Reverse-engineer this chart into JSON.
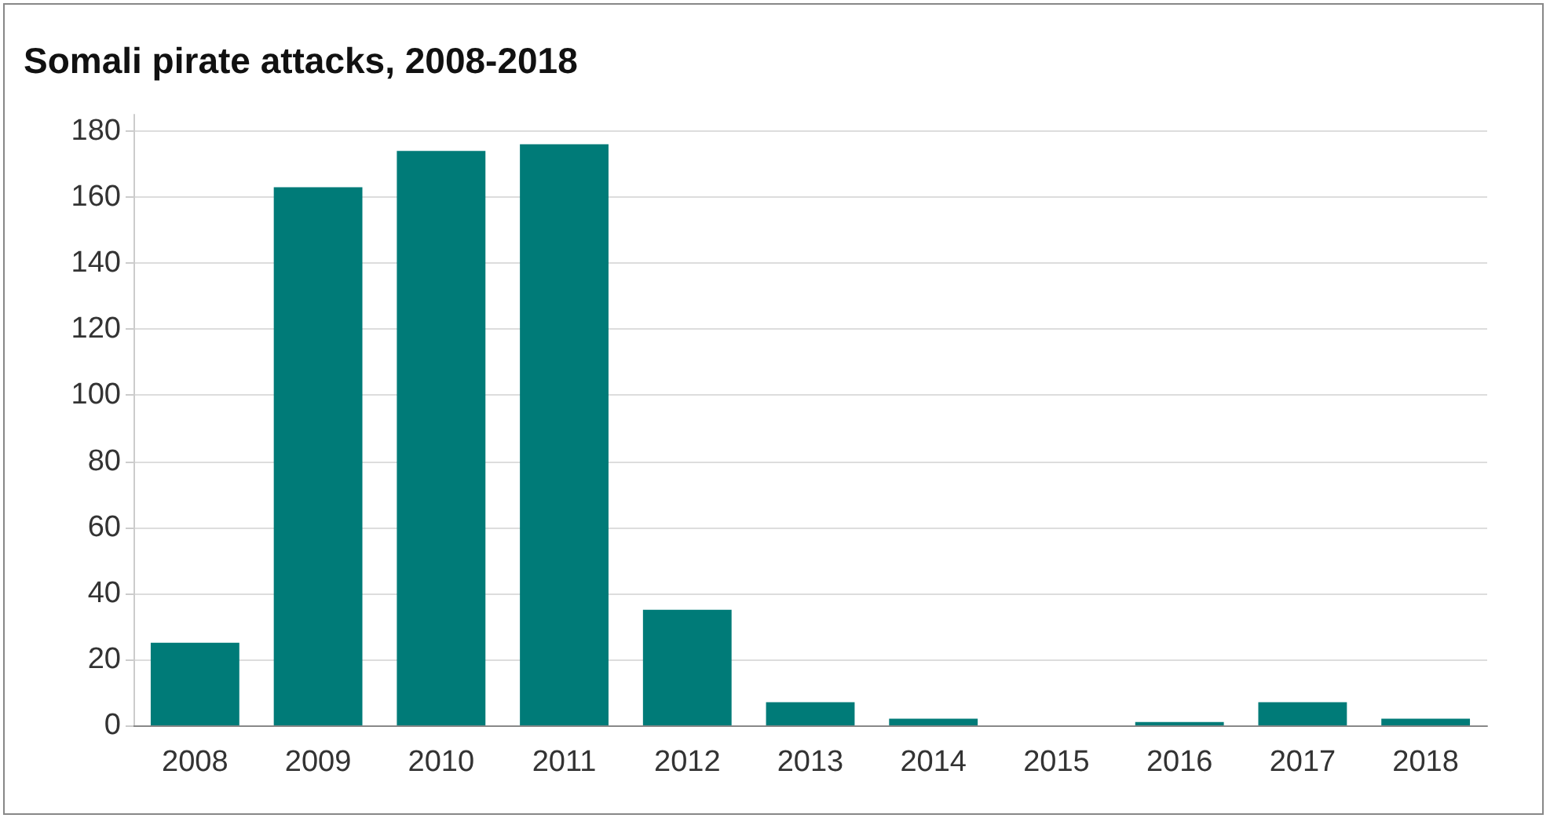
{
  "chart_data": {
    "type": "bar",
    "title": "Somali pirate attacks, 2008-2018",
    "categories": [
      "2008",
      "2009",
      "2010",
      "2011",
      "2012",
      "2013",
      "2014",
      "2015",
      "2016",
      "2017",
      "2018"
    ],
    "values": [
      25,
      163,
      174,
      176,
      35,
      7,
      2,
      0,
      1,
      7,
      2
    ],
    "color": "#007b78",
    "ylim": [
      0,
      185
    ],
    "yticks": [
      0,
      20,
      40,
      60,
      80,
      100,
      120,
      140,
      160,
      180
    ],
    "grid": "y"
  }
}
